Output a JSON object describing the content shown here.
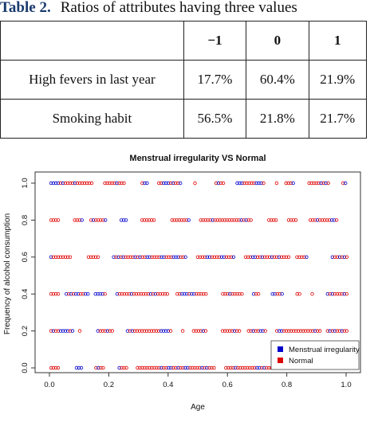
{
  "table": {
    "caption_label": "Table 2.",
    "caption_text": "Ratios of attributes having three values",
    "headers": [
      "",
      "−1",
      "0",
      "1"
    ],
    "rows": [
      {
        "label": "High fevers in last year",
        "values": [
          "17.7%",
          "60.4%",
          "21.9%"
        ]
      },
      {
        "label": "Smoking habit",
        "values": [
          "56.5%",
          "21.8%",
          "21.7%"
        ]
      }
    ]
  },
  "chart_data": {
    "type": "scatter",
    "title": "Menstrual irregularity VS Normal",
    "xlabel": "Age",
    "ylabel": "Frequency of alcohol consumption",
    "xlim": [
      0,
      1
    ],
    "ylim": [
      0,
      1
    ],
    "x_ticks": [
      "0.0",
      "0.2",
      "0.4",
      "0.6",
      "0.8",
      "1.0"
    ],
    "y_ticks": [
      "0.0",
      "0.2",
      "0.4",
      "0.6",
      "0.8",
      "1.0"
    ],
    "y_levels": [
      0.0,
      0.2,
      0.4,
      0.6,
      0.8,
      1.0
    ],
    "marker": "circle-open",
    "legend_position": "bottom-right",
    "series": [
      {
        "name": "Menstrual irregularity",
        "color": "#0000cc"
      },
      {
        "name": "Normal",
        "color": "#dd0000"
      }
    ]
  }
}
